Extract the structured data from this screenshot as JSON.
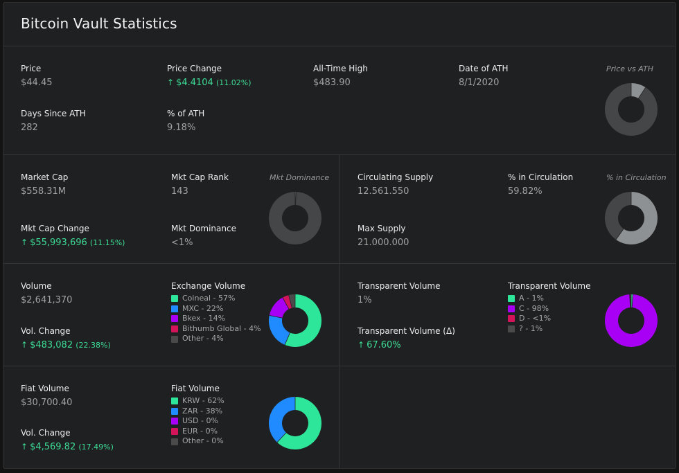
{
  "colors": {
    "green": "#2ee69a",
    "blue": "#1f8bff",
    "purple": "#a800f5",
    "pink": "#d4145a",
    "gray": "#4a4a4a",
    "donut_dark": "#454647",
    "donut_light": "#8e9193"
  },
  "title": "Bitcoin Vault Statistics",
  "price_section": {
    "price": {
      "label": "Price",
      "value": "$44.45"
    },
    "price_change": {
      "label": "Price Change",
      "arrow": "↑",
      "value": "$4.4104",
      "pct": "(11.02%)"
    },
    "ath": {
      "label": "All-Time High",
      "value": "$483.90"
    },
    "date_ath": {
      "label": "Date of ATH",
      "value": "8/1/2020"
    },
    "days_since": {
      "label": "Days Since ATH",
      "value": "282"
    },
    "pct_ath": {
      "label": "% of ATH",
      "value": "9.18%"
    },
    "chart_title": "Price vs ATH",
    "chart_fraction": 0.0918
  },
  "market_section": {
    "market_cap": {
      "label": "Market Cap",
      "value": "$558.31M"
    },
    "rank": {
      "label": "Mkt Cap Rank",
      "value": "143"
    },
    "cap_change": {
      "label": "Mkt Cap Change",
      "arrow": "↑",
      "value": "$55,993,696",
      "pct": "(11.15%)"
    },
    "dominance": {
      "label": "Mkt Dominance",
      "value": "<1%"
    },
    "chart_title": "Mkt Dominance",
    "chart_fraction": 0.005
  },
  "supply_section": {
    "circulating": {
      "label": "Circulating Supply",
      "value": "12.561.550"
    },
    "pct_circ": {
      "label": "% in Circulation",
      "value": "59.82%"
    },
    "max_supply": {
      "label": "Max Supply",
      "value": "21.000.000"
    },
    "chart_title": "% in Circulation",
    "chart_fraction": 0.5982
  },
  "volume_section": {
    "volume": {
      "label": "Volume",
      "value": "$2,641,370"
    },
    "vol_change": {
      "label": "Vol. Change",
      "arrow": "↑",
      "value": "$483,082",
      "pct": "(22.38%)"
    },
    "legend_title": "Exchange Volume",
    "items": [
      {
        "label": "Coineal - 57%",
        "value": 57,
        "color": "#2ee69a"
      },
      {
        "label": "MXC - 22%",
        "value": 22,
        "color": "#1f8bff"
      },
      {
        "label": "Bkex - 14%",
        "value": 14,
        "color": "#a800f5"
      },
      {
        "label": "Bithumb Global - 4%",
        "value": 4,
        "color": "#d4145a"
      },
      {
        "label": "Other - 4%",
        "value": 4,
        "color": "#4a4a4a"
      }
    ]
  },
  "transparent_section": {
    "tv": {
      "label": "Transparent Volume",
      "value": "1%"
    },
    "tv_delta": {
      "label": "Transparent Volume (Δ)",
      "arrow": "↑",
      "value": "67.60%"
    },
    "legend_title": "Transparent Volume",
    "items": [
      {
        "label": "A - 1%",
        "value": 1,
        "color": "#2ee69a"
      },
      {
        "label": "C - 98%",
        "value": 98,
        "color": "#a800f5"
      },
      {
        "label": "D - <1%",
        "value": 0.4,
        "color": "#d4145a"
      },
      {
        "label": "? - 1%",
        "value": 0.6,
        "color": "#4a4a4a"
      }
    ]
  },
  "fiat_section": {
    "fiat": {
      "label": "Fiat Volume",
      "value": "$30,700.40"
    },
    "vol_change": {
      "label": "Vol. Change",
      "arrow": "↑",
      "value": "$4,569.82",
      "pct": "(17.49%)"
    },
    "legend_title": "Fiat Volume",
    "items": [
      {
        "label": "KRW - 62%",
        "value": 62,
        "color": "#2ee69a"
      },
      {
        "label": "ZAR - 38%",
        "value": 38,
        "color": "#1f8bff"
      },
      {
        "label": "USD - 0%",
        "value": 0,
        "color": "#a800f5"
      },
      {
        "label": "EUR - 0%",
        "value": 0,
        "color": "#d4145a"
      },
      {
        "label": "Other - 0%",
        "value": 0,
        "color": "#4a4a4a"
      }
    ]
  }
}
